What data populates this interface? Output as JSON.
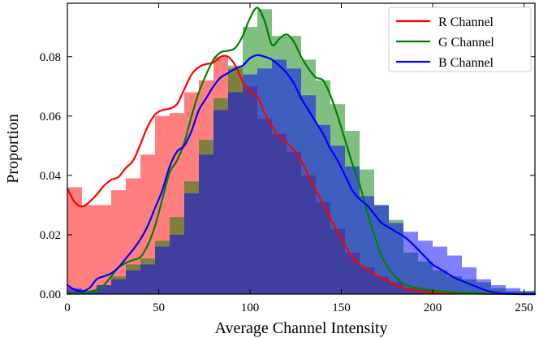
{
  "chart_data": {
    "type": "histogram",
    "xlabel": "Average Channel Intensity",
    "ylabel": "Proportion",
    "xlim": [
      0,
      256
    ],
    "ylim": [
      0,
      0.098
    ],
    "xticks": [
      0,
      50,
      100,
      150,
      200,
      250
    ],
    "yticks": [
      0.0,
      0.02,
      0.04,
      0.06,
      0.08
    ],
    "ytick_labels": [
      "0.00",
      "0.02",
      "0.04",
      "0.06",
      "0.08"
    ],
    "xtick_labels": [
      "0",
      "50",
      "100",
      "150",
      "200",
      "250"
    ],
    "grid": false,
    "legend_position": "top-right",
    "bin_width": 8,
    "bin_starts": [
      0,
      8,
      16,
      24,
      32,
      40,
      48,
      56,
      64,
      72,
      80,
      88,
      96,
      104,
      112,
      120,
      128,
      136,
      144,
      152,
      160,
      168,
      176,
      184,
      192,
      200,
      208,
      216,
      224,
      232,
      240,
      248
    ],
    "series": [
      {
        "name": "R Channel",
        "color": "#ff0000",
        "hist": [
          0.036,
          0.03,
          0.03,
          0.035,
          0.039,
          0.047,
          0.06,
          0.061,
          0.068,
          0.072,
          0.08,
          0.076,
          0.07,
          0.059,
          0.054,
          0.048,
          0.04,
          0.031,
          0.022,
          0.014,
          0.009,
          0.006,
          0.004,
          0.002,
          0.0015,
          0.001,
          0.0008,
          0.0005,
          0.0003,
          0.0002,
          0.0001,
          0.0001
        ],
        "kde_x": [
          0,
          4,
          8,
          12,
          16,
          20,
          24,
          28,
          32,
          36,
          40,
          44,
          48,
          52,
          56,
          60,
          64,
          68,
          72,
          76,
          80,
          84,
          88,
          92,
          96,
          100,
          104,
          108,
          112,
          116,
          120,
          124,
          128,
          132,
          136,
          140,
          144,
          148,
          152,
          156,
          160,
          164,
          168,
          172,
          176,
          180,
          184,
          188,
          192,
          196,
          200,
          210,
          220,
          230,
          240,
          250,
          256
        ],
        "kde_y": [
          0.0355,
          0.031,
          0.0295,
          0.031,
          0.0335,
          0.0365,
          0.0385,
          0.0395,
          0.0425,
          0.045,
          0.0505,
          0.0565,
          0.0605,
          0.062,
          0.0625,
          0.064,
          0.069,
          0.074,
          0.0765,
          0.0775,
          0.078,
          0.08,
          0.08,
          0.077,
          0.0715,
          0.068,
          0.0665,
          0.061,
          0.0565,
          0.053,
          0.051,
          0.0485,
          0.045,
          0.04,
          0.035,
          0.0305,
          0.0255,
          0.021,
          0.0165,
          0.0125,
          0.01,
          0.0083,
          0.0068,
          0.0055,
          0.0043,
          0.003,
          0.0021,
          0.0015,
          0.0011,
          0.0008,
          0.0006,
          0.0004,
          0.0002,
          0.0001,
          0.0001,
          0.0,
          0.0
        ]
      },
      {
        "name": "G Channel",
        "color": "#008000",
        "hist": [
          0.001,
          0.001,
          0.003,
          0.006,
          0.01,
          0.012,
          0.018,
          0.026,
          0.038,
          0.052,
          0.066,
          0.077,
          0.09,
          0.096,
          0.087,
          0.087,
          0.079,
          0.072,
          0.064,
          0.055,
          0.042,
          0.03,
          0.025,
          0.014,
          0.011,
          0.008,
          0.006,
          0.005,
          0.004,
          0.002,
          0.001,
          0.001
        ],
        "kde_x": [
          0,
          4,
          8,
          12,
          16,
          20,
          24,
          28,
          32,
          36,
          40,
          44,
          48,
          52,
          56,
          60,
          64,
          68,
          72,
          76,
          80,
          84,
          88,
          92,
          96,
          100,
          104,
          108,
          112,
          116,
          120,
          124,
          128,
          132,
          136,
          140,
          144,
          148,
          152,
          156,
          160,
          164,
          168,
          172,
          176,
          180,
          184,
          188,
          192,
          196,
          200,
          210,
          220,
          230,
          240,
          250,
          256
        ],
        "kde_y": [
          0.0001,
          0.0002,
          0.0003,
          0.0008,
          0.0015,
          0.003,
          0.006,
          0.009,
          0.0105,
          0.0115,
          0.0125,
          0.0165,
          0.023,
          0.032,
          0.041,
          0.045,
          0.051,
          0.06,
          0.068,
          0.074,
          0.079,
          0.0815,
          0.082,
          0.083,
          0.087,
          0.093,
          0.0965,
          0.092,
          0.084,
          0.086,
          0.0875,
          0.085,
          0.08,
          0.076,
          0.073,
          0.072,
          0.067,
          0.06,
          0.052,
          0.044,
          0.037,
          0.028,
          0.02,
          0.013,
          0.0085,
          0.0055,
          0.0035,
          0.0025,
          0.002,
          0.0015,
          0.0012,
          0.0007,
          0.0004,
          0.0002,
          0.0001,
          0.0,
          0.0
        ]
      },
      {
        "name": "B Channel",
        "color": "#0000ff",
        "hist": [
          0.002,
          0.001,
          0.003,
          0.005,
          0.008,
          0.01,
          0.016,
          0.02,
          0.034,
          0.047,
          0.062,
          0.068,
          0.074,
          0.076,
          0.079,
          0.076,
          0.067,
          0.057,
          0.05,
          0.043,
          0.033,
          0.03,
          0.024,
          0.021,
          0.018,
          0.016,
          0.013,
          0.009,
          0.005,
          0.003,
          0.002,
          0.001
        ],
        "kde_x": [
          0,
          4,
          8,
          12,
          16,
          20,
          24,
          28,
          32,
          36,
          40,
          44,
          48,
          52,
          56,
          60,
          64,
          68,
          72,
          76,
          80,
          84,
          88,
          92,
          96,
          100,
          104,
          108,
          112,
          116,
          120,
          124,
          128,
          132,
          136,
          140,
          144,
          148,
          152,
          156,
          160,
          164,
          168,
          172,
          176,
          180,
          184,
          188,
          192,
          196,
          200,
          204,
          208,
          212,
          216,
          220,
          224,
          228,
          232,
          236,
          240,
          244,
          248,
          252,
          256
        ],
        "kde_y": [
          0.003,
          0.0015,
          0.001,
          0.002,
          0.005,
          0.006,
          0.007,
          0.009,
          0.012,
          0.015,
          0.0185,
          0.023,
          0.029,
          0.035,
          0.043,
          0.048,
          0.05,
          0.055,
          0.062,
          0.066,
          0.07,
          0.073,
          0.0745,
          0.076,
          0.077,
          0.0795,
          0.0805,
          0.08,
          0.079,
          0.077,
          0.0745,
          0.071,
          0.066,
          0.062,
          0.058,
          0.054,
          0.049,
          0.045,
          0.04,
          0.035,
          0.032,
          0.03,
          0.027,
          0.024,
          0.0225,
          0.021,
          0.0195,
          0.0175,
          0.015,
          0.0125,
          0.01,
          0.0085,
          0.007,
          0.0055,
          0.0045,
          0.0035,
          0.0025,
          0.0015,
          0.0008,
          0.0004,
          0.0002,
          0.0001,
          0.0,
          0.0,
          0.0
        ]
      }
    ]
  }
}
